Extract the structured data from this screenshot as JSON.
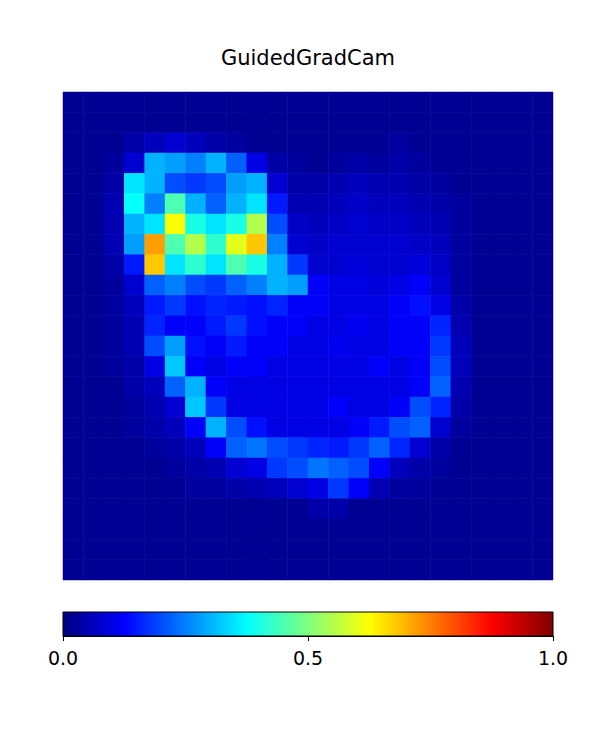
{
  "chart_data": {
    "type": "heatmap",
    "title": "GuidedGradCam",
    "tick_labels": false,
    "cells": [
      [
        0.02,
        0.02,
        0.02,
        0.02,
        0.02,
        0.02,
        0.02,
        0.02,
        0.02,
        0.02,
        0.02,
        0.02,
        0.02,
        0.02,
        0.02,
        0.02,
        0.02,
        0.02,
        0.02,
        0.02,
        0.02,
        0.02,
        0.02,
        0.02
      ],
      [
        0.02,
        0.02,
        0.02,
        0.02,
        0.02,
        0.02,
        0.02,
        0.02,
        0.02,
        0.02,
        0.02,
        0.02,
        0.02,
        0.02,
        0.02,
        0.02,
        0.02,
        0.02,
        0.02,
        0.02,
        0.02,
        0.02,
        0.02,
        0.02
      ],
      [
        0.02,
        0.02,
        0.02,
        0.04,
        0.06,
        0.08,
        0.06,
        0.04,
        0.03,
        0.02,
        0.02,
        0.02,
        0.02,
        0.02,
        0.02,
        0.02,
        0.03,
        0.02,
        0.02,
        0.02,
        0.02,
        0.02,
        0.02,
        0.02
      ],
      [
        0.02,
        0.02,
        0.03,
        0.08,
        0.3,
        0.28,
        0.25,
        0.3,
        0.22,
        0.1,
        0.04,
        0.03,
        0.02,
        0.03,
        0.04,
        0.03,
        0.04,
        0.03,
        0.02,
        0.02,
        0.02,
        0.02,
        0.02,
        0.02
      ],
      [
        0.02,
        0.02,
        0.04,
        0.35,
        0.3,
        0.2,
        0.18,
        0.2,
        0.28,
        0.3,
        0.08,
        0.04,
        0.04,
        0.05,
        0.06,
        0.05,
        0.05,
        0.04,
        0.03,
        0.02,
        0.02,
        0.02,
        0.02,
        0.02
      ],
      [
        0.02,
        0.02,
        0.05,
        0.38,
        0.25,
        0.45,
        0.3,
        0.22,
        0.3,
        0.35,
        0.15,
        0.05,
        0.05,
        0.06,
        0.07,
        0.06,
        0.06,
        0.05,
        0.04,
        0.03,
        0.02,
        0.02,
        0.02,
        0.02
      ],
      [
        0.02,
        0.02,
        0.05,
        0.3,
        0.35,
        0.62,
        0.4,
        0.35,
        0.4,
        0.55,
        0.2,
        0.07,
        0.06,
        0.07,
        0.08,
        0.07,
        0.07,
        0.06,
        0.05,
        0.03,
        0.02,
        0.02,
        0.02,
        0.02
      ],
      [
        0.02,
        0.02,
        0.05,
        0.28,
        0.72,
        0.45,
        0.55,
        0.42,
        0.6,
        0.68,
        0.25,
        0.08,
        0.07,
        0.08,
        0.08,
        0.08,
        0.08,
        0.07,
        0.06,
        0.03,
        0.02,
        0.02,
        0.02,
        0.02
      ],
      [
        0.02,
        0.02,
        0.04,
        0.15,
        0.68,
        0.35,
        0.42,
        0.35,
        0.45,
        0.4,
        0.3,
        0.18,
        0.08,
        0.08,
        0.09,
        0.08,
        0.08,
        0.09,
        0.07,
        0.03,
        0.02,
        0.02,
        0.02,
        0.02
      ],
      [
        0.02,
        0.02,
        0.03,
        0.08,
        0.22,
        0.25,
        0.2,
        0.18,
        0.22,
        0.25,
        0.3,
        0.28,
        0.12,
        0.1,
        0.1,
        0.09,
        0.1,
        0.12,
        0.08,
        0.03,
        0.02,
        0.02,
        0.02,
        0.02
      ],
      [
        0.02,
        0.02,
        0.03,
        0.06,
        0.15,
        0.18,
        0.14,
        0.16,
        0.15,
        0.14,
        0.16,
        0.12,
        0.12,
        0.1,
        0.1,
        0.1,
        0.12,
        0.14,
        0.1,
        0.04,
        0.02,
        0.02,
        0.02,
        0.02
      ],
      [
        0.02,
        0.02,
        0.03,
        0.05,
        0.16,
        0.12,
        0.12,
        0.15,
        0.18,
        0.14,
        0.12,
        0.12,
        0.1,
        0.1,
        0.11,
        0.1,
        0.12,
        0.12,
        0.16,
        0.05,
        0.02,
        0.02,
        0.02,
        0.02
      ],
      [
        0.02,
        0.02,
        0.03,
        0.05,
        0.2,
        0.28,
        0.14,
        0.12,
        0.15,
        0.12,
        0.12,
        0.1,
        0.1,
        0.11,
        0.1,
        0.1,
        0.12,
        0.12,
        0.18,
        0.06,
        0.02,
        0.02,
        0.02,
        0.02
      ],
      [
        0.02,
        0.02,
        0.03,
        0.04,
        0.1,
        0.32,
        0.12,
        0.1,
        0.12,
        0.12,
        0.1,
        0.1,
        0.1,
        0.1,
        0.1,
        0.12,
        0.1,
        0.12,
        0.2,
        0.06,
        0.02,
        0.02,
        0.02,
        0.02
      ],
      [
        0.02,
        0.02,
        0.02,
        0.04,
        0.06,
        0.22,
        0.3,
        0.12,
        0.1,
        0.1,
        0.1,
        0.1,
        0.1,
        0.1,
        0.1,
        0.1,
        0.1,
        0.12,
        0.22,
        0.05,
        0.02,
        0.02,
        0.02,
        0.02
      ],
      [
        0.02,
        0.02,
        0.02,
        0.03,
        0.05,
        0.08,
        0.32,
        0.18,
        0.1,
        0.1,
        0.1,
        0.1,
        0.1,
        0.12,
        0.1,
        0.1,
        0.12,
        0.2,
        0.16,
        0.04,
        0.02,
        0.02,
        0.02,
        0.02
      ],
      [
        0.02,
        0.02,
        0.02,
        0.03,
        0.04,
        0.06,
        0.12,
        0.3,
        0.2,
        0.14,
        0.1,
        0.1,
        0.1,
        0.1,
        0.12,
        0.15,
        0.2,
        0.22,
        0.08,
        0.03,
        0.02,
        0.02,
        0.02,
        0.02
      ],
      [
        0.02,
        0.02,
        0.02,
        0.02,
        0.03,
        0.04,
        0.06,
        0.12,
        0.22,
        0.24,
        0.2,
        0.18,
        0.16,
        0.15,
        0.18,
        0.22,
        0.16,
        0.08,
        0.04,
        0.02,
        0.02,
        0.02,
        0.02,
        0.02
      ],
      [
        0.02,
        0.02,
        0.02,
        0.02,
        0.02,
        0.03,
        0.04,
        0.05,
        0.08,
        0.1,
        0.18,
        0.2,
        0.24,
        0.22,
        0.2,
        0.12,
        0.06,
        0.04,
        0.03,
        0.02,
        0.02,
        0.02,
        0.02,
        0.02
      ],
      [
        0.02,
        0.02,
        0.02,
        0.02,
        0.02,
        0.02,
        0.03,
        0.03,
        0.04,
        0.05,
        0.06,
        0.08,
        0.1,
        0.18,
        0.12,
        0.05,
        0.03,
        0.03,
        0.02,
        0.02,
        0.02,
        0.02,
        0.02,
        0.02
      ],
      [
        0.02,
        0.02,
        0.02,
        0.02,
        0.02,
        0.02,
        0.02,
        0.02,
        0.02,
        0.02,
        0.02,
        0.02,
        0.04,
        0.04,
        0.02,
        0.02,
        0.02,
        0.02,
        0.02,
        0.02,
        0.02,
        0.02,
        0.02,
        0.02
      ],
      [
        0.02,
        0.02,
        0.02,
        0.02,
        0.02,
        0.02,
        0.02,
        0.02,
        0.02,
        0.02,
        0.02,
        0.02,
        0.02,
        0.02,
        0.02,
        0.02,
        0.02,
        0.02,
        0.02,
        0.02,
        0.02,
        0.02,
        0.02,
        0.02
      ],
      [
        0.02,
        0.02,
        0.02,
        0.02,
        0.02,
        0.02,
        0.02,
        0.02,
        0.02,
        0.02,
        0.02,
        0.02,
        0.02,
        0.02,
        0.02,
        0.02,
        0.02,
        0.02,
        0.02,
        0.02,
        0.02,
        0.02,
        0.02,
        0.02
      ],
      [
        0.02,
        0.02,
        0.02,
        0.02,
        0.02,
        0.02,
        0.02,
        0.02,
        0.02,
        0.02,
        0.02,
        0.02,
        0.02,
        0.02,
        0.02,
        0.02,
        0.02,
        0.02,
        0.02,
        0.02,
        0.02,
        0.02,
        0.02,
        0.02
      ]
    ],
    "colorbar": {
      "range": [
        0,
        1
      ],
      "ticks": [
        {
          "value": 0,
          "label": "0.0"
        },
        {
          "value": 0.5,
          "label": "0.5"
        },
        {
          "value": 1,
          "label": "1.0"
        }
      ]
    }
  }
}
